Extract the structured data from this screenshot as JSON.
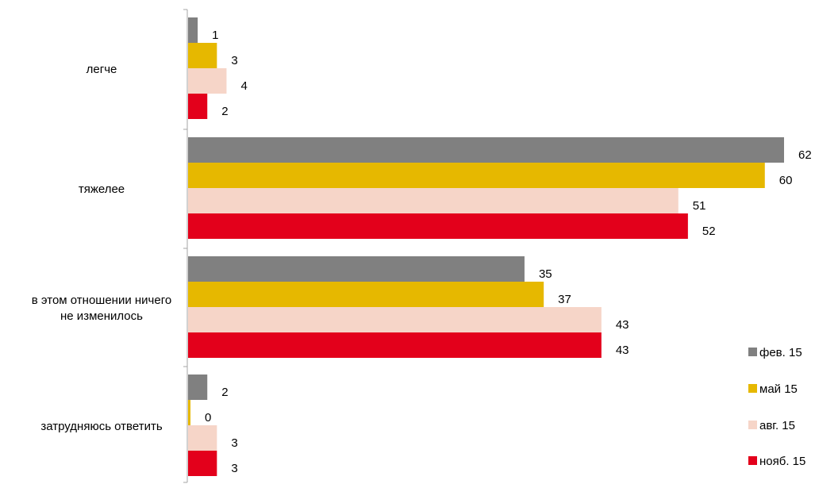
{
  "chart_data": {
    "type": "bar",
    "orientation": "horizontal",
    "title": "",
    "xlabel": "",
    "ylabel": "",
    "xlim": [
      0,
      62
    ],
    "grid": false,
    "legend_position": "bottom-right",
    "categories": [
      [
        "легче"
      ],
      [
        "тяжелее"
      ],
      [
        "в этом отношении ничего",
        "не изменилось"
      ],
      [
        "затрудняюсь ответить"
      ]
    ],
    "series": [
      {
        "name": "фев. 15",
        "color": "#808080",
        "values": [
          1,
          62,
          35,
          2
        ]
      },
      {
        "name": "май 15",
        "color": "#e6b800",
        "values": [
          3,
          60,
          37,
          0
        ]
      },
      {
        "name": "авг. 15",
        "color": "#f6d5c8",
        "values": [
          4,
          51,
          43,
          3
        ]
      },
      {
        "name": "нояб. 15",
        "color": "#e3001b",
        "values": [
          2,
          52,
          43,
          3
        ]
      }
    ]
  }
}
